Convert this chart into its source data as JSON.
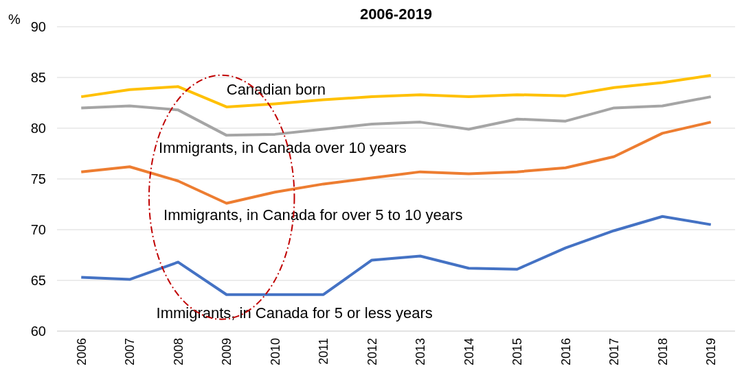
{
  "chart_data": {
    "type": "line",
    "title": "2006-2019",
    "ylabel": "%",
    "categories": [
      "2006",
      "2007",
      "2008",
      "2009",
      "2010",
      "2011",
      "2012",
      "2013",
      "2014",
      "2015",
      "2016",
      "2017",
      "2018",
      "2019"
    ],
    "series": [
      {
        "name": "Canadian born",
        "color": "#ffc000",
        "values": [
          83.1,
          83.8,
          84.1,
          82.1,
          82.4,
          82.8,
          83.1,
          83.3,
          83.1,
          83.3,
          83.2,
          84.0,
          84.5,
          85.2
        ]
      },
      {
        "name": "Immigrants, in Canada over 10 years",
        "color": "#a5a5a5",
        "values": [
          82.0,
          82.2,
          81.8,
          79.3,
          79.4,
          79.9,
          80.4,
          80.6,
          79.9,
          80.9,
          80.7,
          82.0,
          82.2,
          83.1
        ]
      },
      {
        "name": "Immigrants, in Canada for over 5 to 10 years",
        "color": "#ed7d31",
        "values": [
          75.7,
          76.2,
          74.8,
          72.6,
          73.7,
          74.5,
          75.1,
          75.7,
          75.5,
          75.7,
          76.1,
          77.2,
          79.5,
          80.6
        ]
      },
      {
        "name": "Immigrants, in Canada for 5 or less years",
        "color": "#4472c4",
        "values": [
          65.3,
          65.1,
          66.8,
          63.6,
          63.6,
          63.6,
          67.0,
          67.4,
          66.2,
          66.1,
          68.2,
          69.9,
          71.3,
          70.5
        ]
      }
    ],
    "ylim": [
      60,
      90
    ],
    "yticks": [
      60,
      65,
      70,
      75,
      80,
      85,
      90
    ],
    "grid": "y",
    "marker": "none",
    "line_style": "solid"
  }
}
